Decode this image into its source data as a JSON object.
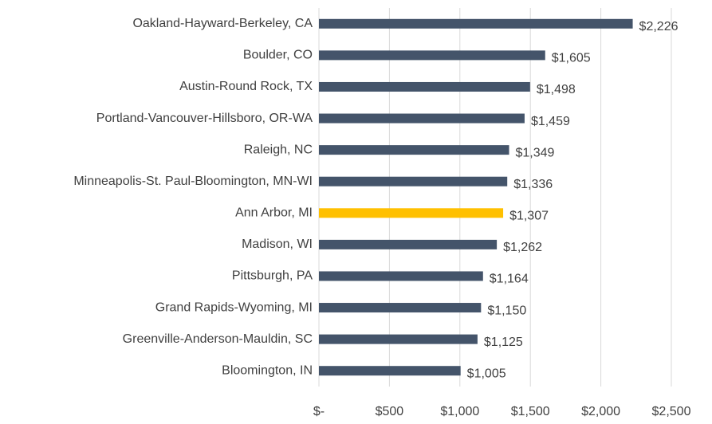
{
  "chart_data": {
    "type": "bar",
    "orientation": "horizontal",
    "categories": [
      "Oakland-Hayward-Berkeley, CA",
      "Boulder, CO",
      "Austin-Round Rock, TX",
      "Portland-Vancouver-Hillsboro, OR-WA",
      "Raleigh, NC",
      "Minneapolis-St. Paul-Bloomington, MN-WI",
      "Ann Arbor, MI",
      "Madison, WI",
      "Pittsburgh, PA",
      "Grand Rapids-Wyoming, MI",
      "Greenville-Anderson-Mauldin, SC",
      "Bloomington, IN"
    ],
    "values": [
      2226,
      1605,
      1498,
      1459,
      1349,
      1336,
      1307,
      1262,
      1164,
      1150,
      1125,
      1005
    ],
    "value_labels": [
      "$2,226",
      "$1,605",
      "$1,498",
      "$1,459",
      "$1,349",
      "$1,336",
      "$1,307",
      "$1,262",
      "$1,164",
      "$1,150",
      "$1,125",
      "$1,005"
    ],
    "colors": [
      "#44546a",
      "#44546a",
      "#44546a",
      "#44546a",
      "#44546a",
      "#44546a",
      "#ffc000",
      "#44546a",
      "#44546a",
      "#44546a",
      "#44546a",
      "#44546a"
    ],
    "xlim": [
      0,
      2500
    ],
    "xticks": [
      {
        "value": 0,
        "label": "$-"
      },
      {
        "value": 500,
        "label": "$500"
      },
      {
        "value": 1000,
        "label": "$1,000"
      },
      {
        "value": 1500,
        "label": "$1,500"
      },
      {
        "value": 2000,
        "label": "$2,000"
      },
      {
        "value": 2500,
        "label": "$2,500"
      }
    ],
    "grid": true
  }
}
